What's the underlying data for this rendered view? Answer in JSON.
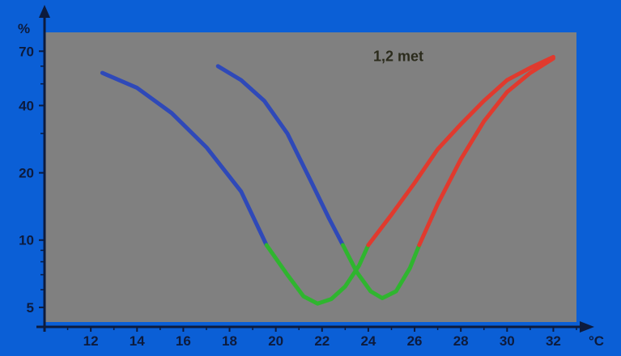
{
  "colors": {
    "background": "#0b5fd6",
    "plot_area": "#808080",
    "axis": "#0d1b3d",
    "cold_side": "#2f49b8",
    "comfort_zone": "#2fb52f",
    "warm_side": "#e03a2e",
    "annotation": "#2b2b1c"
  },
  "chart_data": {
    "type": "line",
    "title": "",
    "xlabel": "°C",
    "ylabel": "%",
    "yscale": "log",
    "xlim": [
      10,
      33
    ],
    "ylim": [
      4.3,
      85
    ],
    "x_ticks": [
      12,
      14,
      16,
      18,
      20,
      22,
      24,
      26,
      28,
      30,
      32
    ],
    "x_tick_labels": [
      "12",
      "14",
      "16",
      "18",
      "20",
      "22",
      "24",
      "26",
      "28",
      "30",
      "32"
    ],
    "y_ticks": [
      5,
      10,
      20,
      40,
      70
    ],
    "y_tick_labels": [
      "5",
      "10",
      "20",
      "40",
      "70"
    ],
    "annotations": [
      {
        "text": "1,2 met",
        "x": 25.3,
        "y": 66
      }
    ],
    "series": [
      {
        "x": [
          12.5,
          14.0,
          15.5,
          17.0,
          18.5,
          19.6,
          20.5,
          21.2,
          21.8,
          22.4,
          23.0,
          23.6,
          24.0,
          25.0,
          26.0,
          27.0,
          28.0,
          29.0,
          30.0,
          31.0,
          32.0
        ],
        "y": [
          56,
          48,
          37,
          26,
          16.5,
          9.5,
          7.0,
          5.6,
          5.2,
          5.45,
          6.2,
          7.7,
          9.5,
          13.0,
          18.0,
          25.5,
          33.0,
          42.0,
          52.0,
          59.0,
          66.0
        ],
        "segments": [
          {
            "zone": "cold",
            "x_range": [
              12.5,
              19.6
            ]
          },
          {
            "zone": "comfort",
            "x_range": [
              19.6,
              24.0
            ]
          },
          {
            "zone": "warm",
            "x_range": [
              24.0,
              32.0
            ]
          }
        ]
      },
      {
        "x": [
          17.5,
          18.5,
          19.5,
          20.5,
          21.5,
          22.3,
          22.9,
          23.5,
          24.1,
          24.6,
          25.2,
          25.8,
          26.2,
          27.0,
          28.0,
          29.0,
          30.0,
          31.0,
          32.0
        ],
        "y": [
          60,
          52,
          42,
          30,
          18.5,
          12.5,
          9.5,
          7.2,
          5.9,
          5.5,
          5.9,
          7.5,
          9.5,
          14.5,
          23.0,
          34.0,
          46.0,
          56.0,
          65.0
        ],
        "segments": [
          {
            "zone": "cold",
            "x_range": [
              17.5,
              22.9
            ]
          },
          {
            "zone": "comfort",
            "x_range": [
              22.9,
              26.2
            ]
          },
          {
            "zone": "warm",
            "x_range": [
              26.2,
              32.0
            ]
          }
        ]
      }
    ]
  }
}
